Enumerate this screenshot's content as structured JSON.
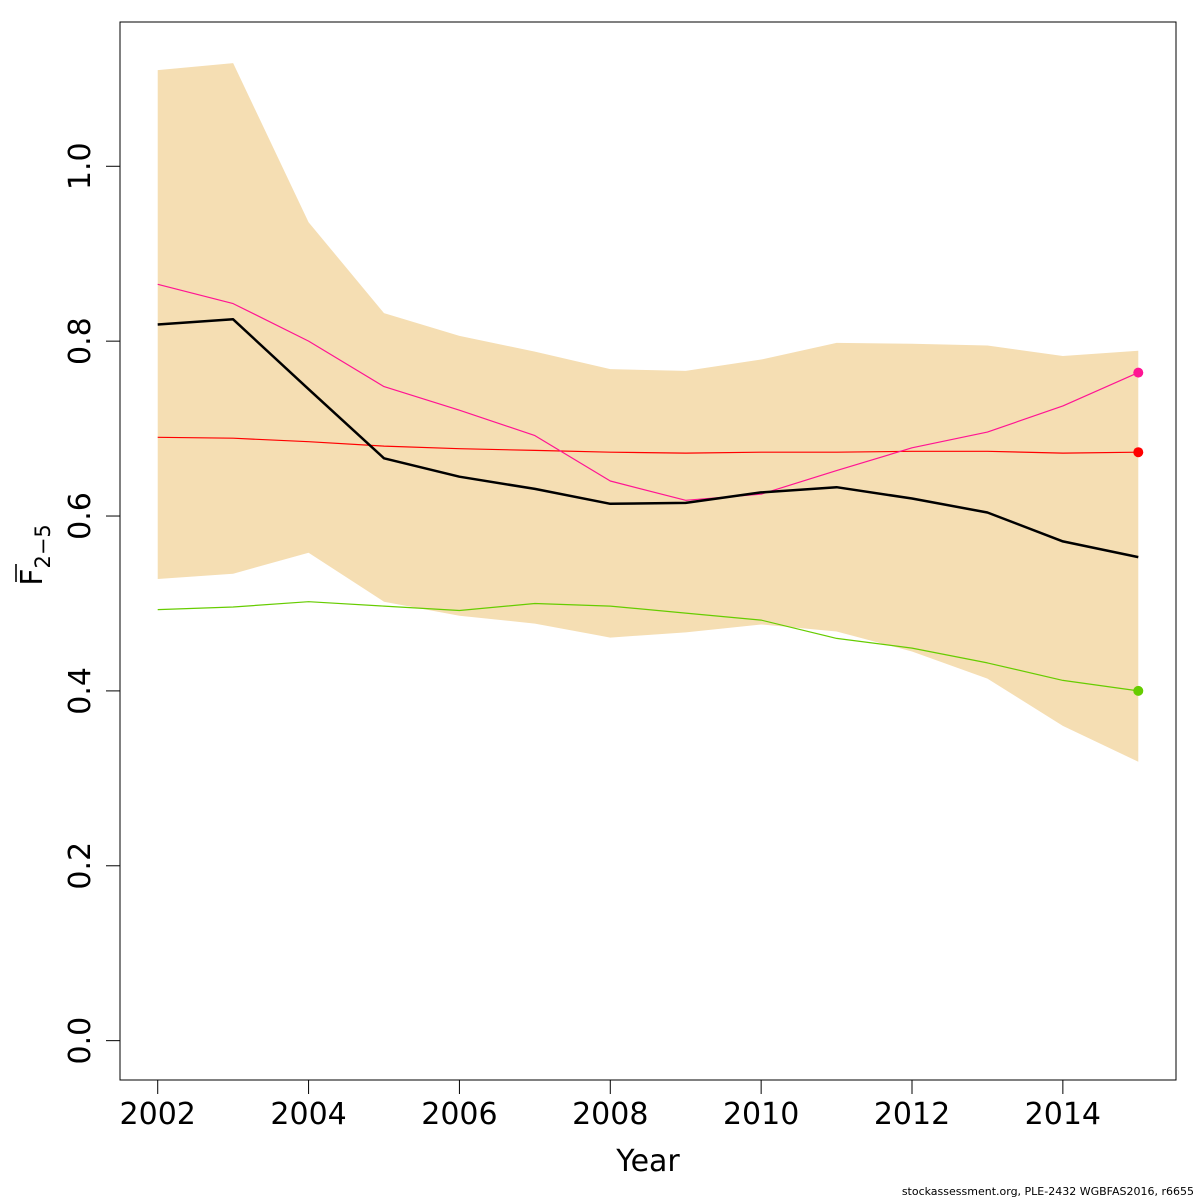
{
  "chart_data": {
    "type": "line",
    "xlabel": "Year",
    "ylabel": {
      "main": "F",
      "sub": "2−5"
    },
    "xlim": [
      2001.5,
      2015.5
    ],
    "ylim": [
      -0.045,
      1.165
    ],
    "x_ticks": [
      2002,
      2004,
      2006,
      2008,
      2010,
      2012,
      2014
    ],
    "x_tick_labels": [
      "2002",
      "2004",
      "2006",
      "2008",
      "2010",
      "2012",
      "2014"
    ],
    "y_ticks": [
      0.0,
      0.2,
      0.4,
      0.6,
      0.8,
      1.0
    ],
    "y_tick_labels": [
      "0.0",
      "0.2",
      "0.4",
      "0.6",
      "0.8",
      "1.0"
    ],
    "grid": false,
    "x": [
      2002,
      2003,
      2004,
      2005,
      2006,
      2007,
      2008,
      2009,
      2010,
      2011,
      2012,
      2013,
      2014,
      2015
    ],
    "confidence_band": {
      "upper": [
        1.11,
        1.118,
        0.936,
        0.832,
        0.806,
        0.788,
        0.768,
        0.766,
        0.779,
        0.798,
        0.797,
        0.795,
        0.783,
        0.789
      ],
      "lower": [
        0.528,
        0.534,
        0.558,
        0.502,
        0.486,
        0.477,
        0.461,
        0.467,
        0.476,
        0.468,
        0.445,
        0.414,
        0.36,
        0.319
      ],
      "color": "#f5deb3"
    },
    "series": [
      {
        "values": [
          0.819,
          0.825,
          0.745,
          0.666,
          0.645,
          0.631,
          0.614,
          0.615,
          0.627,
          0.633,
          0.62,
          0.604,
          0.571,
          0.553
        ],
        "color": "#000000",
        "width": 2.5,
        "end_point": false
      },
      {
        "values": [
          0.865,
          0.843,
          0.8,
          0.748,
          0.721,
          0.692,
          0.64,
          0.618,
          0.625,
          0.652,
          0.678,
          0.696,
          0.726,
          0.764
        ],
        "color": "#ff1493",
        "width": 1.2,
        "end_point": true
      },
      {
        "values": [
          0.69,
          0.689,
          0.685,
          0.68,
          0.677,
          0.675,
          0.673,
          0.672,
          0.673,
          0.673,
          0.674,
          0.674,
          0.672,
          0.673
        ],
        "color": "#ff0000",
        "width": 1.2,
        "end_point": true
      },
      {
        "values": [
          0.493,
          0.496,
          0.502,
          0.497,
          0.492,
          0.5,
          0.497,
          0.489,
          0.481,
          0.46,
          0.449,
          0.432,
          0.412,
          0.4
        ],
        "color": "#66cc00",
        "width": 1.2,
        "end_point": true
      }
    ]
  },
  "footer": {
    "source": "stockassessment.org, PLE-2432  WGBFAS2016, r6655"
  }
}
